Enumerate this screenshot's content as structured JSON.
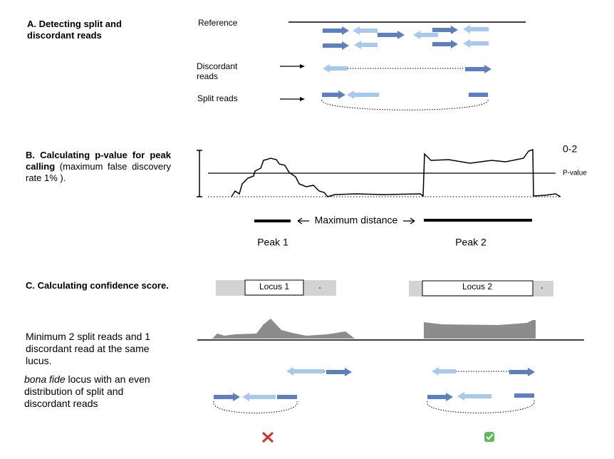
{
  "section_a": {
    "title_lines": [
      "A. Detecting split and",
      "discordant reads"
    ],
    "reference": "Reference",
    "discordant_reads": [
      "Discordant",
      "reads"
    ],
    "split_reads": "Split reads"
  },
  "section_b": {
    "title_bold": "B. Calculating p-value for peak calling",
    "title_rest": "(maximum false discovery rate 1% ).",
    "scale_label": "0-2",
    "threshold_label": "P-value",
    "distance_label": "Maximum distance",
    "peaks": [
      "Peak 1",
      "Peak 2"
    ]
  },
  "section_c": {
    "title": "C. Calculating confidence score.",
    "loci": [
      "Locus 1",
      "Locus 2"
    ],
    "criterion_1": "Minimum 2 split reads and 1 discordant read at the same lucus.",
    "criterion_2_italic": "bona fide",
    "criterion_2_rest": "locus with an even distribution of split and discordant reads"
  }
}
